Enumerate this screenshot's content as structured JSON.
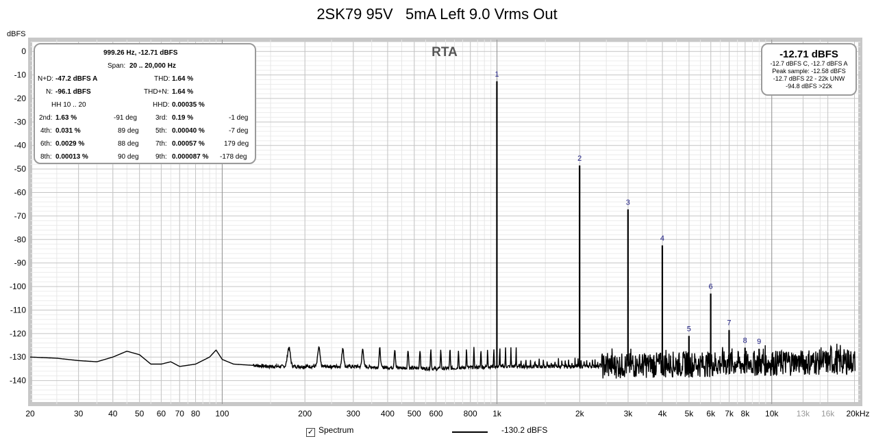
{
  "title": "2SK79 95V   5mA Left 9.0 Vrms Out",
  "rta_label": "RTA",
  "chart_data": {
    "type": "line",
    "title": "2SK79 95V   5mA Left 9.0 Vrms Out",
    "ylabel": "dBFS",
    "xlabel": "",
    "x_scale": "log",
    "xlim": [
      20,
      21000
    ],
    "ylim": [
      -150,
      5
    ],
    "y_ticks": [
      0,
      -10,
      -20,
      -30,
      -40,
      -50,
      -60,
      -70,
      -80,
      -90,
      -100,
      -110,
      -120,
      -130,
      -140
    ],
    "y_tick_labels": [
      "0",
      "-10",
      "-20",
      "-30",
      "-40",
      "-50",
      "-60",
      "-70",
      "-80",
      "-90",
      "-100",
      "-110",
      "-120",
      "-130",
      "-140"
    ],
    "x_ticks": [
      20,
      30,
      40,
      50,
      60,
      70,
      80,
      100,
      200,
      300,
      400,
      500,
      600,
      800,
      1000,
      2000,
      3000,
      4000,
      5000,
      6000,
      7000,
      8000,
      10000,
      13000,
      16000,
      20000
    ],
    "x_tick_labels": [
      "20",
      "30",
      "40",
      "50",
      "60",
      "70",
      "80",
      "100",
      "200",
      "300",
      "400",
      "500",
      "600",
      "800",
      "1k",
      "2k",
      "3k",
      "4k",
      "5k",
      "6k",
      "7k",
      "8k",
      "10k",
      "13k",
      "16k",
      "20kHz"
    ],
    "grid": true,
    "series": [
      {
        "name": "Spectrum",
        "noise_floor_profile": [
          [
            20,
            -130
          ],
          [
            25,
            -130.5
          ],
          [
            30,
            -131.5
          ],
          [
            35,
            -132
          ],
          [
            40,
            -130
          ],
          [
            45,
            -127.5
          ],
          [
            50,
            -129
          ],
          [
            55,
            -133
          ],
          [
            60,
            -133
          ],
          [
            65,
            -132
          ],
          [
            70,
            -134
          ],
          [
            80,
            -133
          ],
          [
            90,
            -130
          ],
          [
            95,
            -127
          ],
          [
            100,
            -131
          ],
          [
            110,
            -133
          ],
          [
            150,
            -134
          ],
          [
            300,
            -134
          ],
          [
            600,
            -135
          ],
          [
            1000,
            -134
          ],
          [
            2000,
            -134
          ],
          [
            20000,
            -132
          ]
        ],
        "harmonics": [
          {
            "label": "1",
            "freq": 999.26,
            "level": -12.71
          },
          {
            "label": "2",
            "freq": 1998.5,
            "level": -48.5
          },
          {
            "label": "3",
            "freq": 2997.8,
            "level": -67.2
          },
          {
            "label": "4",
            "freq": 3997,
            "level": -82.5
          },
          {
            "label": "5",
            "freq": 4996.3,
            "level": -121
          },
          {
            "label": "6",
            "freq": 5995.6,
            "level": -103
          },
          {
            "label": "7",
            "freq": 6994.8,
            "level": -118.5
          },
          {
            "label": "8",
            "freq": 7994,
            "level": -126
          },
          {
            "label": "9",
            "freq": 8993,
            "level": -126.5
          }
        ]
      }
    ]
  },
  "info_left": {
    "freq_level": "999.26 Hz, -12.71 dBFS",
    "span_label": "Span:",
    "span_value": "20 .. 20,000 Hz",
    "nd_label": "N+D:",
    "nd_value": "-47.2 dBFS A",
    "thd_label": "THD:",
    "thd_value": "1.64 %",
    "n_label": "N:",
    "n_value": "-96.1 dBFS",
    "thdn_label": "THD+N:",
    "thdn_value": "1.64 %",
    "hh_label": "HH 10 .. 20",
    "hhd_label": "HHD:",
    "hhd_value": "0.00035 %",
    "h2_label": "2nd:",
    "h2_value": "1.63 %",
    "h2_phase": "-91 deg",
    "h3_label": "3rd:",
    "h3_value": "0.19 %",
    "h3_phase": "-1 deg",
    "h4_label": "4th:",
    "h4_value": "0.031 %",
    "h4_phase": "89 deg",
    "h5_label": "5th:",
    "h5_value": "0.00040 %",
    "h5_phase": "-7 deg",
    "h6_label": "6th:",
    "h6_value": "0.0029 %",
    "h6_phase": "88 deg",
    "h7_label": "7th:",
    "h7_value": "0.00057 %",
    "h7_phase": "179 deg",
    "h8_label": "8th:",
    "h8_value": "0.00013 %",
    "h8_phase": "90 deg",
    "h9_label": "9th:",
    "h9_value": "0.000087 %",
    "h9_phase": "-178 deg"
  },
  "info_right": {
    "level": "-12.71 dBFS",
    "line1": "-12.7 dBFS C, -12.7 dBFS A",
    "line2": "Peak sample: -12.58 dBFS",
    "line3": "-12.7 dBFS 22 - 22k UNW",
    "line4": "-94.8 dBFS >22k"
  },
  "legend": {
    "checkbox_mark": "✓",
    "series_label": "Spectrum",
    "series_value": "-130.2 dBFS"
  }
}
